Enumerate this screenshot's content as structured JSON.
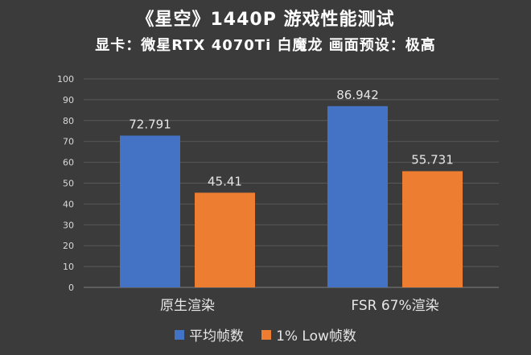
{
  "header": {
    "title": "《星空》1440P 游戏性能测试",
    "subtitle": "显卡：微星RTX 4070Ti 白魔龙 画面预设：极高"
  },
  "colors": {
    "series_1": "#4472c4",
    "series_2": "#ed7d31",
    "background": "#3b3b3b",
    "grid": "#595959",
    "text": "#d9d9d9"
  },
  "chart_data": {
    "type": "bar",
    "categories": [
      "原生渲染",
      "FSR 67%渲染"
    ],
    "series": [
      {
        "name": "平均帧数",
        "values": [
          72.791,
          86.942
        ],
        "labels": [
          "72.791",
          "86.942"
        ]
      },
      {
        "name": "1% Low帧数",
        "values": [
          45.41,
          55.731
        ],
        "labels": [
          "45.41",
          "55.731"
        ]
      }
    ],
    "ylim": [
      0,
      100
    ],
    "yticks": [
      0,
      10,
      20,
      30,
      40,
      50,
      60,
      70,
      80,
      90,
      100
    ],
    "grid": true,
    "legend_position": "bottom",
    "xlabel": "",
    "ylabel": ""
  }
}
